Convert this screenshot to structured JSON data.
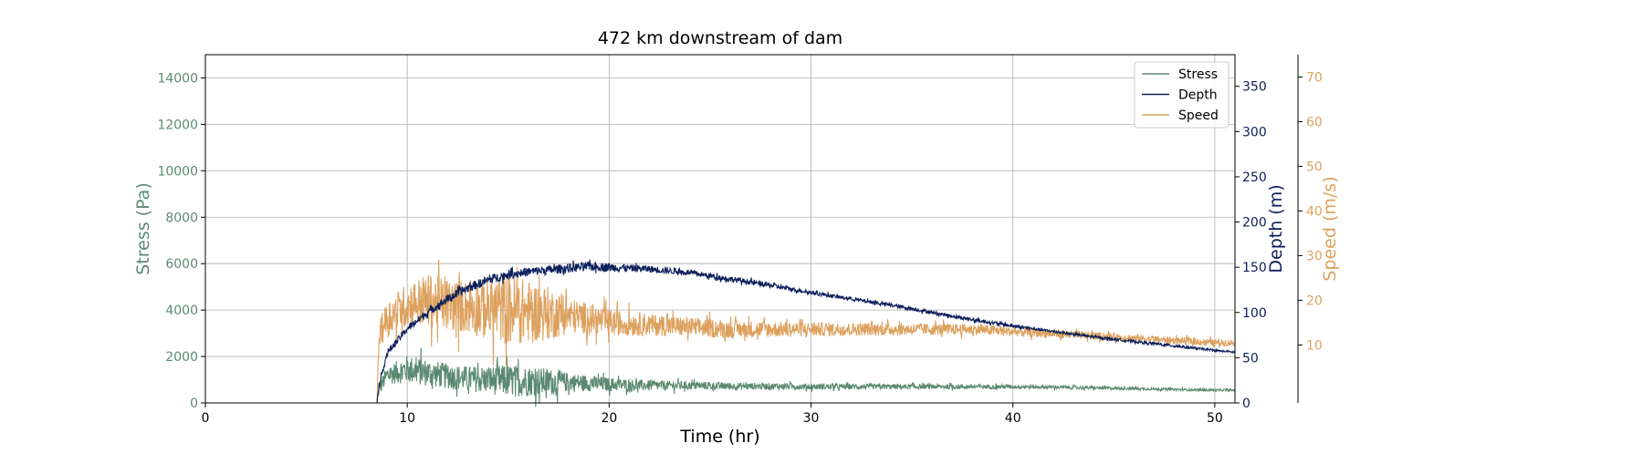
{
  "chart_data": {
    "type": "line",
    "title": "472 km downstream of dam",
    "xlabel": "Time (hr)",
    "xlim": [
      0,
      51
    ],
    "x_ticks": [
      0,
      10,
      20,
      30,
      40,
      50
    ],
    "grid": true,
    "legend_position": "top-right",
    "axes": [
      {
        "id": "stress",
        "label": "Stress (Pa)",
        "side": "left",
        "color": "#5b8a72",
        "ylim": [
          0,
          15000
        ],
        "ticks": [
          0,
          2000,
          4000,
          6000,
          8000,
          10000,
          12000,
          14000
        ]
      },
      {
        "id": "depth",
        "label": "Depth (m)",
        "side": "right",
        "color": "#0b1f5c",
        "ylim": [
          0,
          385
        ],
        "ticks": [
          0,
          50,
          100,
          150,
          200,
          250,
          300,
          350
        ]
      },
      {
        "id": "speed",
        "label": "Speed (m/s)",
        "side": "right-offset",
        "color": "#dda15e",
        "ylim": [
          -3,
          75
        ],
        "ticks": [
          10,
          20,
          30,
          40,
          50,
          60,
          70
        ]
      }
    ],
    "series": [
      {
        "name": "Stress",
        "axis": "stress",
        "color": "#5b8a72",
        "x": [
          0,
          8.5,
          8.6,
          9,
          10,
          11,
          12,
          13,
          14,
          15,
          16,
          17,
          18,
          19,
          20,
          22,
          24,
          26,
          28,
          30,
          32,
          34,
          36,
          38,
          40,
          42,
          44,
          46,
          48,
          50,
          51
        ],
        "y": [
          0,
          0,
          600,
          1200,
          1450,
          1300,
          1150,
          1050,
          1000,
          950,
          950,
          900,
          900,
          850,
          800,
          750,
          750,
          720,
          720,
          700,
          700,
          700,
          700,
          700,
          700,
          680,
          650,
          620,
          580,
          550,
          550
        ],
        "noise": [
          0,
          0,
          300,
          400,
          600,
          600,
          550,
          550,
          600,
          700,
          650,
          600,
          400,
          350,
          300,
          220,
          180,
          160,
          140,
          130,
          120,
          110,
          100,
          100,
          90,
          80,
          70,
          60,
          50,
          50,
          40
        ]
      },
      {
        "name": "Depth",
        "axis": "depth",
        "color": "#0b1f5c",
        "x": [
          0,
          8.5,
          8.6,
          9,
          10,
          11,
          12,
          13,
          14,
          15,
          16,
          17,
          18,
          19,
          20,
          21,
          22,
          24,
          26,
          28,
          30,
          32,
          34,
          36,
          38,
          40,
          42,
          44,
          46,
          48,
          50,
          51
        ],
        "y": [
          0,
          0,
          20,
          55,
          82,
          100,
          115,
          127,
          136,
          142,
          145,
          147,
          149,
          151,
          150,
          149,
          148,
          144,
          137,
          130,
          122,
          115,
          108,
          100,
          92,
          85,
          79,
          73,
          68,
          63,
          58,
          56
        ],
        "noise": [
          0,
          0,
          3,
          4,
          4,
          4,
          5,
          5,
          5,
          5,
          5,
          5,
          5,
          5,
          5,
          4,
          4,
          3,
          3,
          3,
          2,
          2,
          2,
          2,
          2,
          2,
          1.5,
          1.5,
          1.5,
          1.5,
          1,
          1
        ]
      },
      {
        "name": "Speed",
        "axis": "speed",
        "color": "#dda15e",
        "x": [
          0,
          8.5,
          8.6,
          9,
          10,
          11,
          12,
          13,
          14,
          15,
          16,
          17,
          18,
          19,
          20,
          22,
          24,
          26,
          28,
          30,
          32,
          34,
          36,
          38,
          40,
          42,
          44,
          46,
          48,
          50,
          51
        ],
        "y": [
          -3,
          -3,
          12,
          16,
          19,
          20,
          19,
          18.5,
          18,
          18,
          17.5,
          17,
          16.5,
          16,
          15,
          14.5,
          14,
          13.5,
          13.5,
          13.5,
          13.5,
          13.5,
          13.5,
          13.5,
          13,
          12.5,
          12,
          11.5,
          11,
          10.5,
          10.5
        ],
        "noise": [
          0,
          0,
          3,
          4,
          5,
          6,
          6,
          6,
          7,
          8,
          7,
          6,
          4,
          3.5,
          3,
          2.5,
          2.2,
          2,
          1.8,
          1.6,
          1.5,
          1.4,
          1.3,
          1.2,
          1.1,
          1,
          0.9,
          0.9,
          0.8,
          0.8,
          0.8
        ]
      }
    ],
    "legend": [
      "Stress",
      "Depth",
      "Speed"
    ]
  }
}
